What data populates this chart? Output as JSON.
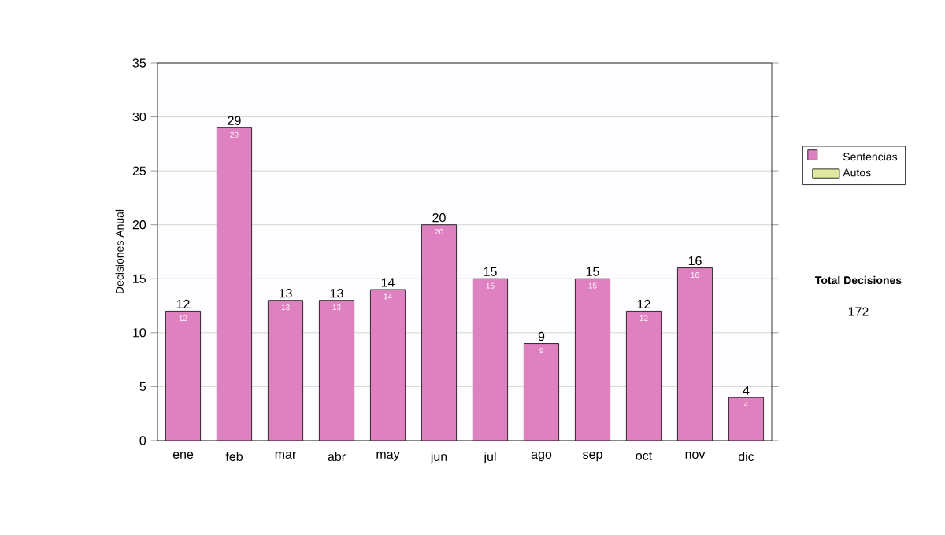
{
  "chart_data": {
    "type": "bar",
    "ylabel": "Decisiones Anual",
    "categories": [
      "ene",
      "feb",
      "mar",
      "abr",
      "may",
      "jun",
      "jul",
      "ago",
      "sep",
      "oct",
      "nov",
      "dic"
    ],
    "series": [
      {
        "name": "Sentencias",
        "color": "#df80c0",
        "values": [
          12,
          29,
          13,
          13,
          14,
          20,
          15,
          9,
          15,
          12,
          16,
          4
        ]
      },
      {
        "name": "Autos",
        "color": "#e0e8a0",
        "values": [
          null,
          null,
          null,
          null,
          null,
          null,
          null,
          null,
          null,
          null,
          null,
          null
        ]
      }
    ],
    "stacked": true,
    "data_labels": true,
    "totals": [
      "12",
      "29",
      "13",
      "13",
      "14",
      "20",
      "15",
      "9",
      "15",
      "12",
      "16",
      "4"
    ],
    "ylim": [
      0,
      35
    ],
    "yticks": [
      0,
      5,
      10,
      15,
      20,
      25,
      30,
      35
    ],
    "grid": "y",
    "legend": "right",
    "annotations": [
      "Total Decisiones",
      "172"
    ]
  }
}
